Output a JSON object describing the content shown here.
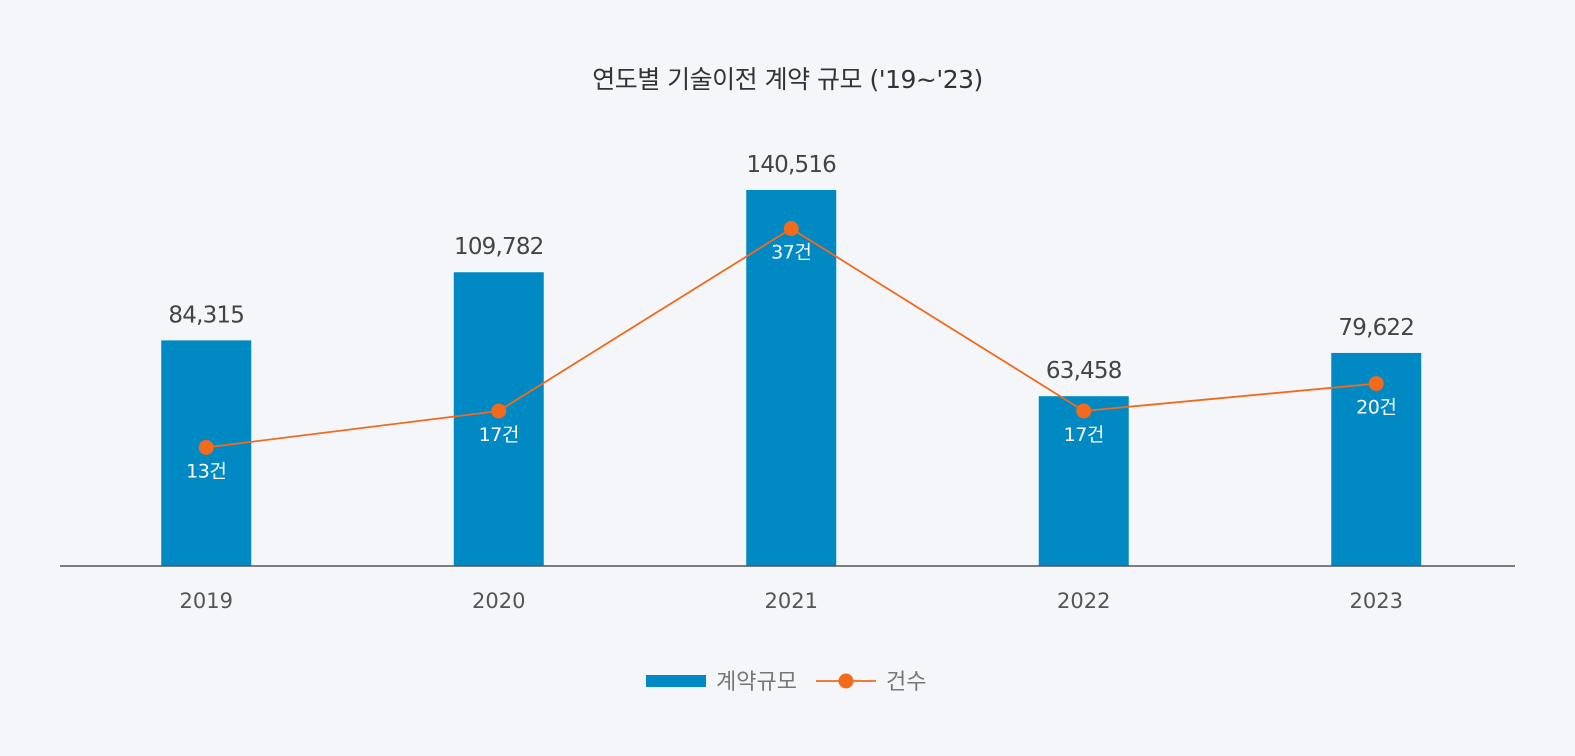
{
  "chart_data": {
    "type": "bar",
    "title": "연도별 기술이전 계약 규모 ('19~'23)",
    "categories": [
      "2019",
      "2020",
      "2021",
      "2022",
      "2023"
    ],
    "series": [
      {
        "name": "계약규모",
        "type": "bar",
        "values": [
          84315,
          109782,
          140516,
          63458,
          79622
        ],
        "labels": [
          "84,315",
          "109,782",
          "140,516",
          "63,458",
          "79,622"
        ],
        "color": "#0089c3"
      },
      {
        "name": "건수",
        "type": "line",
        "values": [
          13,
          17,
          37,
          17,
          20
        ],
        "labels": [
          "13건",
          "17건",
          "37건",
          "17건",
          "20건"
        ],
        "color": "#f26a1b"
      }
    ],
    "ylim": [
      0,
      150000
    ],
    "y2lim": [
      0,
      50
    ],
    "legend": "bottom-center",
    "grid": false
  }
}
